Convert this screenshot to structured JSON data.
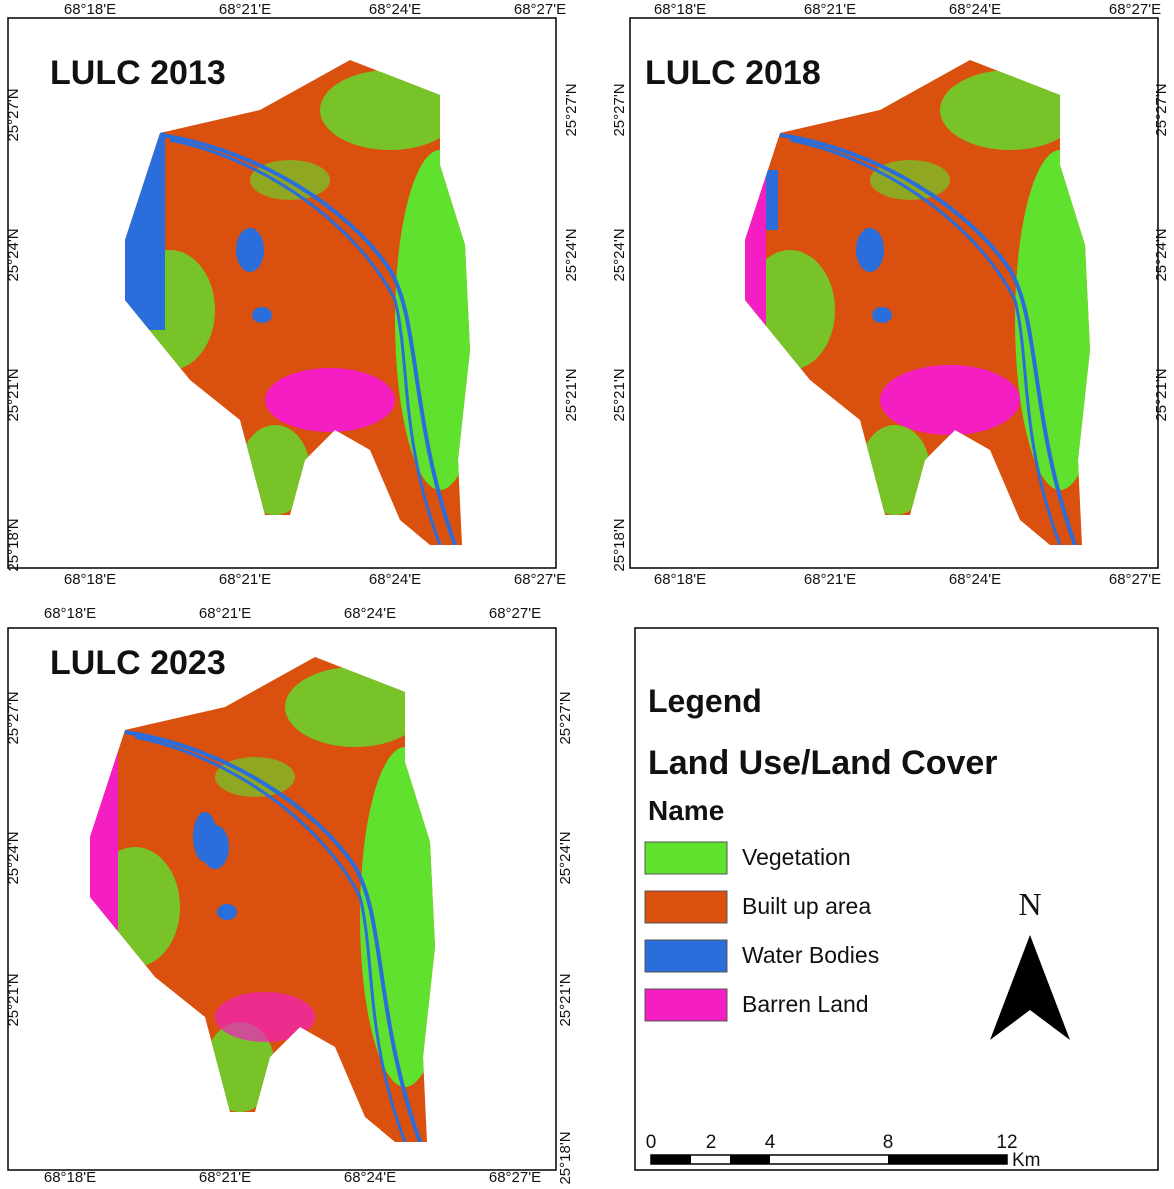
{
  "panels": [
    {
      "title": "LULC 2013",
      "top_labels": [
        "68°18'E",
        "68°21'E",
        "68°24'E",
        "68°27'E"
      ],
      "bottom_labels": [
        "68°18'E",
        "68°21'E",
        "68°24'E",
        "68°27'E"
      ],
      "left_labels": [
        "25°27'N",
        "25°24'N",
        "25°21'N",
        "25°18'N"
      ],
      "right_labels": [
        "25°27'N",
        "25°24'N",
        "25°21'N"
      ]
    },
    {
      "title": "LULC 2018",
      "top_labels": [
        "68°18'E",
        "68°21'E",
        "68°24'E",
        "68°27'E"
      ],
      "bottom_labels": [
        "68°18'E",
        "68°21'E",
        "68°24'E",
        "68°27'E"
      ],
      "left_labels": [
        "25°27'N",
        "25°24'N",
        "25°21'N",
        "25°18'N"
      ],
      "right_labels": [
        "25°27'N",
        "25°24'N",
        "25°21'N"
      ]
    },
    {
      "title": "LULC 2023",
      "top_labels": [
        "68°18'E",
        "68°21'E",
        "68°24'E",
        "68°27'E"
      ],
      "bottom_labels": [
        "68°18'E",
        "68°21'E",
        "68°24'E",
        "68°27'E"
      ],
      "left_labels": [
        "25°27'N",
        "25°24'N",
        "25°21'N"
      ],
      "right_labels": [
        "25°27'N",
        "25°24'N",
        "25°21'N",
        "25°18'N"
      ]
    }
  ],
  "legend": {
    "title": "Legend",
    "subtitle": "Land Use/Land Cover",
    "header": "Name",
    "items": [
      {
        "label": "Vegetation",
        "color": "#5fe12e"
      },
      {
        "label": "Built up area",
        "color": "#d9500f"
      },
      {
        "label": "Water Bodies",
        "color": "#2a6ddb"
      },
      {
        "label": "Barren Land",
        "color": "#f41ec3"
      }
    ],
    "north": "N",
    "scale_labels": [
      "0",
      "2",
      "4",
      "8",
      "12"
    ],
    "scale_unit": "Km"
  }
}
